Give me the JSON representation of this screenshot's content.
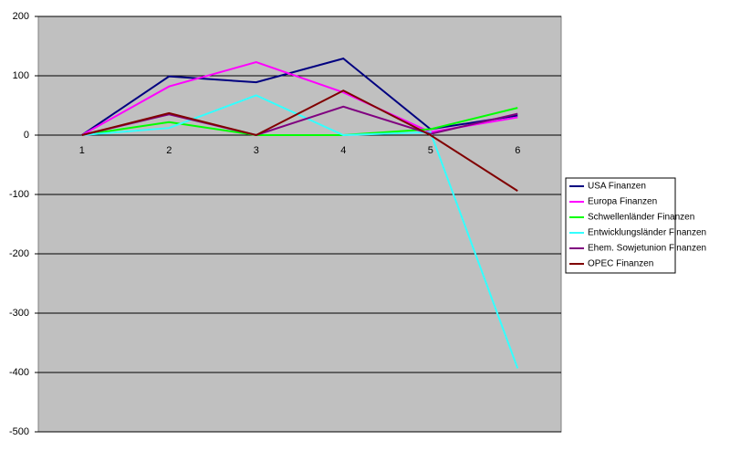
{
  "chart_data": {
    "type": "line",
    "categories": [
      "1",
      "2",
      "3",
      "4",
      "5",
      "6"
    ],
    "series": [
      {
        "name": "USA Finanzen",
        "color": "#000080",
        "values": [
          0,
          99,
          89,
          129,
          10,
          33
        ]
      },
      {
        "name": "Europa Finanzen",
        "color": "#ff00ff",
        "values": [
          0,
          82,
          123,
          72,
          5,
          30
        ]
      },
      {
        "name": "Schwellenländer Finanzen",
        "color": "#00ff00",
        "values": [
          0,
          22,
          0,
          0,
          10,
          46
        ]
      },
      {
        "name": "Entwicklungsländer Finanzen",
        "color": "#33ffff",
        "values": [
          0,
          12,
          67,
          0,
          5,
          -393
        ]
      },
      {
        "name": "Ehem. Sowjetunion Finanzen",
        "color": "#800080",
        "values": [
          0,
          35,
          0,
          48,
          2,
          36
        ]
      },
      {
        "name": "OPEC Finanzen",
        "color": "#800000",
        "values": [
          0,
          37,
          0,
          75,
          0,
          -94
        ]
      }
    ],
    "ylim": [
      -500,
      200
    ],
    "yticks": [
      -500,
      -400,
      -300,
      -200,
      -100,
      0,
      100,
      200
    ],
    "grid": true,
    "legend": "right",
    "plot_color": "#c0c0c0"
  }
}
